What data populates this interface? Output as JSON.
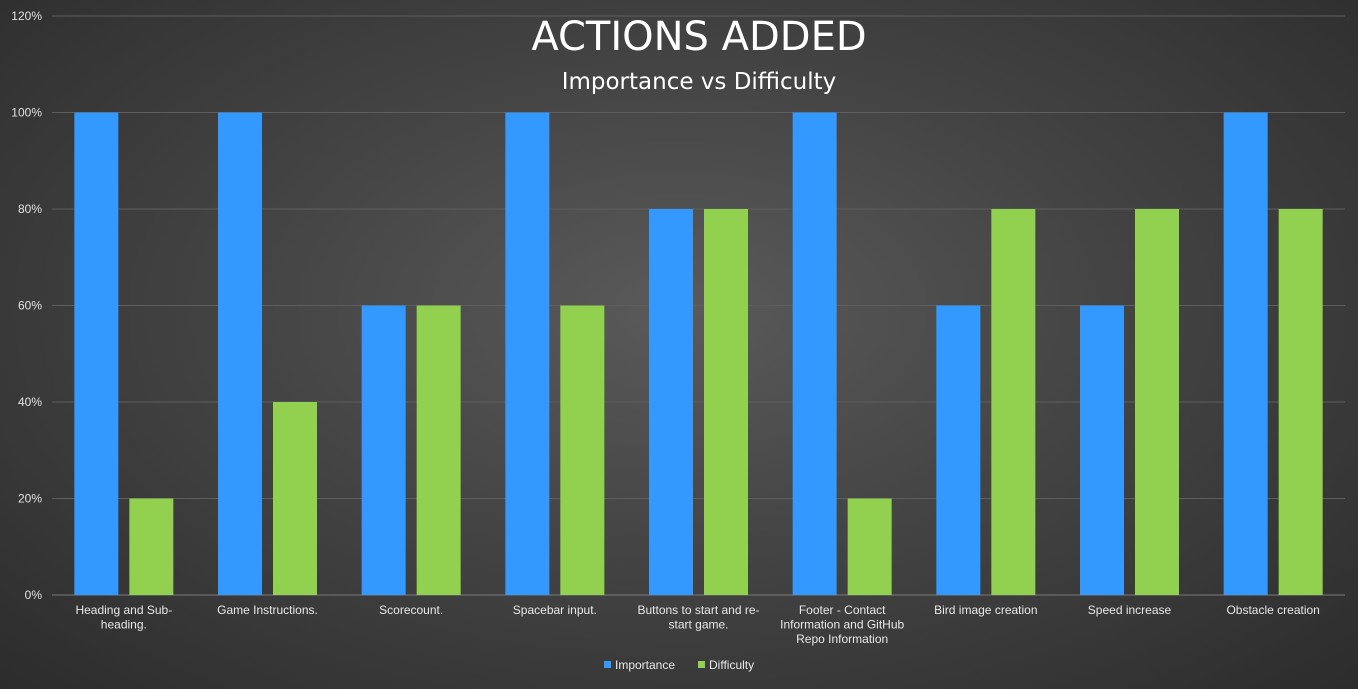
{
  "chart_data": {
    "type": "bar",
    "title": "ACTIONS ADDED",
    "subtitle": "Importance vs Difficulty",
    "xlabel": "",
    "ylabel": "",
    "ylim": [
      0,
      120
    ],
    "yticks": [
      "0%",
      "20%",
      "40%",
      "60%",
      "80%",
      "100%",
      "120%"
    ],
    "grid": true,
    "legend_position": "bottom",
    "categories": [
      [
        "Heading and Sub-",
        "heading."
      ],
      [
        "Game Instructions."
      ],
      [
        "Scorecount."
      ],
      [
        "Spacebar input."
      ],
      [
        "Buttons to start and re-",
        "start game."
      ],
      [
        "Footer - Contact",
        "Information and GitHub",
        "Repo Information"
      ],
      [
        "Bird image creation"
      ],
      [
        "Speed increase"
      ],
      [
        "Obstacle creation"
      ]
    ],
    "series": [
      {
        "name": "Importance",
        "color": "#3399ff",
        "values": [
          100,
          100,
          60,
          100,
          80,
          100,
          60,
          60,
          100
        ]
      },
      {
        "name": "Difficulty",
        "color": "#92d050",
        "values": [
          20,
          40,
          60,
          60,
          80,
          20,
          80,
          80,
          80
        ]
      }
    ]
  }
}
